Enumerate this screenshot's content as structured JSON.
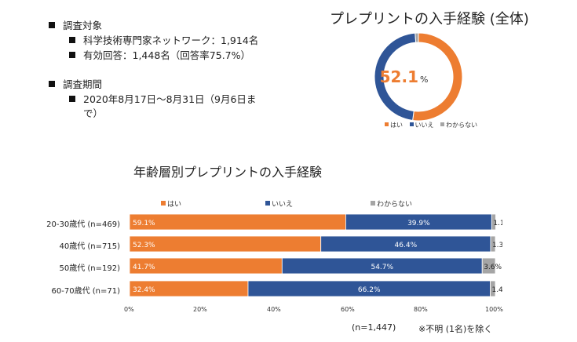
{
  "info": {
    "target_heading": "調査対象",
    "target_items": [
      "科学技術専門家ネットワーク：1,914名",
      "有効回答：1,448名（回答率75.7%）"
    ],
    "period_heading": "調査期間",
    "period_line1": "2020年8月17日～8月31日（9月6日ま",
    "period_line2": "で）"
  },
  "chart_data": [
    {
      "type": "pie",
      "variant": "donut",
      "title": "プレプリントの入手経験 (全体)",
      "center_value": "52.1",
      "center_unit": "%",
      "categories": [
        "はい",
        "いいえ",
        "わからない"
      ],
      "values": [
        52.1,
        46.7,
        1.2
      ],
      "colors": [
        "#ED7D31",
        "#2F5597",
        "#A5A5A5"
      ]
    },
    {
      "type": "bar",
      "orientation": "horizontal",
      "stacked": true,
      "title": "年齢層別プレプリントの入手経験",
      "categories": [
        "20-30歳代 (n=469)",
        "40歳代 (n=715)",
        "50歳代 (n=192)",
        "60-70歳代 (n=71)"
      ],
      "series": [
        {
          "name": "はい",
          "color": "#ED7D31",
          "values": [
            59.1,
            52.3,
            41.7,
            32.4
          ],
          "labels": [
            "59.1%",
            "52.3%",
            "41.7%",
            "32.4%"
          ]
        },
        {
          "name": "いいえ",
          "color": "#2F5597",
          "values": [
            39.9,
            46.4,
            54.7,
            66.2
          ],
          "labels": [
            "39.9%",
            "46.4%",
            "54.7%",
            "66.2%"
          ]
        },
        {
          "name": "わからない",
          "color": "#A5A5A5",
          "values": [
            1.1,
            1.3,
            3.6,
            1.4
          ],
          "labels": [
            "1.1%",
            "1.3%",
            "3.6%",
            "1.4%"
          ]
        }
      ],
      "xlim": [
        0,
        100
      ],
      "xticks": [
        "0%",
        "20%",
        "40%",
        "60%",
        "80%",
        "100%"
      ],
      "notes": [
        "(n=1,447)",
        "※不明 (1名)を除く"
      ]
    }
  ]
}
